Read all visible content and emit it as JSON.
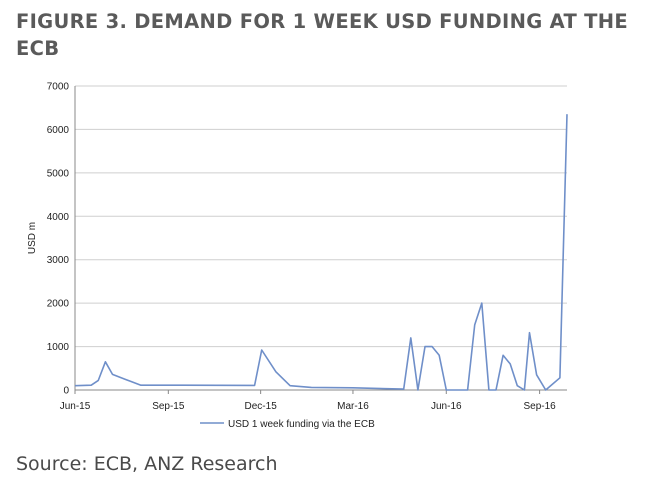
{
  "figure": {
    "title": "FIGURE 3. DEMAND FOR 1 WEEK USD FUNDING AT THE ECB",
    "source": "Source: ECB, ANZ Research"
  },
  "chart_data": {
    "type": "line",
    "ylabel": "USD m",
    "ylim": [
      0,
      7000
    ],
    "yticks": [
      0,
      1000,
      2000,
      3000,
      4000,
      5000,
      6000,
      7000
    ],
    "xlim": [
      "2015-06-01",
      "2016-09-28"
    ],
    "xticks": [
      {
        "label": "Jun-15",
        "date": "2015-06-01"
      },
      {
        "label": "Sep-15",
        "date": "2015-09-01"
      },
      {
        "label": "Dec-15",
        "date": "2015-12-01"
      },
      {
        "label": "Mar-16",
        "date": "2016-03-01"
      },
      {
        "label": "Jun-16",
        "date": "2016-06-01"
      },
      {
        "label": "Sep-16",
        "date": "2016-09-01"
      }
    ],
    "grid": "horizontal",
    "legend_position": "bottom",
    "series": [
      {
        "name": "USD 1 week funding via the ECB",
        "color": "#6f8fc9",
        "points": [
          {
            "x": "2015-06-01",
            "y": 100
          },
          {
            "x": "2015-06-17",
            "y": 110
          },
          {
            "x": "2015-06-24",
            "y": 220
          },
          {
            "x": "2015-07-01",
            "y": 650
          },
          {
            "x": "2015-07-08",
            "y": 360
          },
          {
            "x": "2015-07-20",
            "y": 250
          },
          {
            "x": "2015-08-05",
            "y": 110
          },
          {
            "x": "2015-09-15",
            "y": 110
          },
          {
            "x": "2015-11-25",
            "y": 105
          },
          {
            "x": "2015-12-02",
            "y": 920
          },
          {
            "x": "2015-12-16",
            "y": 420
          },
          {
            "x": "2015-12-30",
            "y": 100
          },
          {
            "x": "2016-01-20",
            "y": 60
          },
          {
            "x": "2016-03-01",
            "y": 50
          },
          {
            "x": "2016-04-20",
            "y": 20
          },
          {
            "x": "2016-04-27",
            "y": 1200
          },
          {
            "x": "2016-05-04",
            "y": 0
          },
          {
            "x": "2016-05-11",
            "y": 1000
          },
          {
            "x": "2016-05-18",
            "y": 1000
          },
          {
            "x": "2016-05-25",
            "y": 800
          },
          {
            "x": "2016-06-01",
            "y": 0
          },
          {
            "x": "2016-06-22",
            "y": 0
          },
          {
            "x": "2016-06-29",
            "y": 1500
          },
          {
            "x": "2016-07-06",
            "y": 2000
          },
          {
            "x": "2016-07-13",
            "y": 0
          },
          {
            "x": "2016-07-20",
            "y": 0
          },
          {
            "x": "2016-07-27",
            "y": 800
          },
          {
            "x": "2016-08-03",
            "y": 600
          },
          {
            "x": "2016-08-10",
            "y": 100
          },
          {
            "x": "2016-08-17",
            "y": 0
          },
          {
            "x": "2016-08-22",
            "y": 1320
          },
          {
            "x": "2016-08-29",
            "y": 350
          },
          {
            "x": "2016-09-07",
            "y": 0
          },
          {
            "x": "2016-09-21",
            "y": 280
          },
          {
            "x": "2016-09-28",
            "y": 6350
          }
        ]
      }
    ]
  }
}
